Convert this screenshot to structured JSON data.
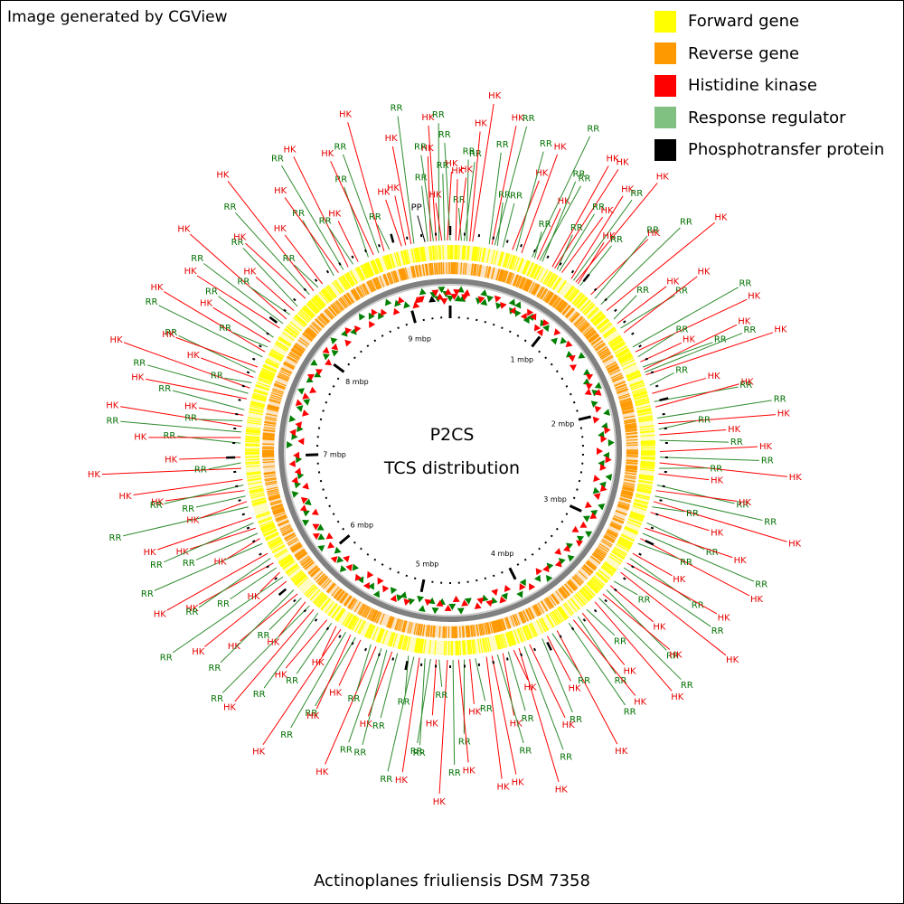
{
  "credit": "Image generated by CGView",
  "title": "P2CS",
  "subtitle": "TCS distribution",
  "organism": "Actinoplanes friuliensis DSM 7358",
  "colors": {
    "forward": "#ffff00",
    "reverse": "#ff9900",
    "hk": "#ff0000",
    "rr": "#80c080",
    "pp": "#000000",
    "hk_label": "#e60000",
    "rr_label": "#007000",
    "backbone": "#808080"
  },
  "legend": [
    {
      "label": "Forward gene",
      "color": "#ffff00"
    },
    {
      "label": "Reverse gene",
      "color": "#ff9900"
    },
    {
      "label": "Histidine kinase",
      "color": "#ff0000"
    },
    {
      "label": "Response regulator",
      "color": "#80c080"
    },
    {
      "label": "Phosphotransfer protein",
      "color": "#000000"
    }
  ],
  "genome": {
    "length_mbp": 9.4,
    "tick_labels": [
      "1 mbp",
      "2 mbp",
      "3 mbp",
      "4 mbp",
      "5 mbp",
      "6 mbp",
      "7 mbp",
      "8 mbp",
      "9 mbp"
    ]
  },
  "features": [
    {
      "type": "PP",
      "pos": 9.22
    },
    {
      "type": "RR",
      "pos": 9.24
    },
    {
      "type": "HK",
      "pos": 9.26
    },
    {
      "type": "RR",
      "pos": 9.28
    },
    {
      "type": "HK",
      "pos": 9.3
    },
    {
      "type": "RR",
      "pos": 9.32
    },
    {
      "type": "HK",
      "pos": 9.34
    },
    {
      "type": "RR",
      "pos": 9.36
    },
    {
      "type": "HK",
      "pos": 9.38
    },
    {
      "type": "RR",
      "pos": 9.4
    },
    {
      "type": "HK",
      "pos": 9.12
    },
    {
      "type": "RR",
      "pos": 9.14
    },
    {
      "type": "HK",
      "pos": 9.05
    },
    {
      "type": "HK",
      "pos": 9.08
    },
    {
      "type": "RR",
      "pos": 0.1
    },
    {
      "type": "RR",
      "pos": 0.12
    },
    {
      "type": "HK",
      "pos": 0.14
    },
    {
      "type": "HK",
      "pos": 0.16
    },
    {
      "type": "RR",
      "pos": 0.08
    },
    {
      "type": "HK",
      "pos": 0.04
    },
    {
      "type": "HK",
      "pos": 0.06
    },
    {
      "type": "RR",
      "pos": 0.28
    },
    {
      "type": "HK",
      "pos": 0.3
    },
    {
      "type": "RR",
      "pos": 0.32
    },
    {
      "type": "RR",
      "pos": 0.34
    },
    {
      "type": "RR",
      "pos": 0.38
    },
    {
      "type": "HK",
      "pos": 0.45
    },
    {
      "type": "RR",
      "pos": 0.48
    },
    {
      "type": "HK",
      "pos": 0.52
    },
    {
      "type": "RR",
      "pos": 0.6
    },
    {
      "type": "RR",
      "pos": 0.62
    },
    {
      "type": "HK",
      "pos": 0.64
    },
    {
      "type": "RR",
      "pos": 0.66
    },
    {
      "type": "RR",
      "pos": 0.68
    },
    {
      "type": "HK",
      "pos": 0.76
    },
    {
      "type": "HK",
      "pos": 0.78
    },
    {
      "type": "RR",
      "pos": 0.8
    },
    {
      "type": "RR",
      "pos": 0.82
    },
    {
      "type": "HK",
      "pos": 0.84
    },
    {
      "type": "HK",
      "pos": 0.92
    },
    {
      "type": "RR",
      "pos": 0.94
    },
    {
      "type": "HK",
      "pos": 0.96
    },
    {
      "type": "HK",
      "pos": 0.98
    },
    {
      "type": "RR",
      "pos": 1.0
    },
    {
      "type": "HK",
      "pos": 1.1
    },
    {
      "type": "RR",
      "pos": 1.14
    },
    {
      "type": "RR",
      "pos": 1.2
    },
    {
      "type": "HK",
      "pos": 1.26
    },
    {
      "type": "RR",
      "pos": 1.34
    },
    {
      "type": "HK",
      "pos": 1.38
    },
    {
      "type": "RR",
      "pos": 1.42
    },
    {
      "type": "HK",
      "pos": 1.46
    },
    {
      "type": "RR",
      "pos": 1.58
    },
    {
      "type": "HK",
      "pos": 1.62
    },
    {
      "type": "RR",
      "pos": 1.66
    },
    {
      "type": "HK",
      "pos": 1.7
    },
    {
      "type": "RR",
      "pos": 1.74
    },
    {
      "type": "HK",
      "pos": 1.76
    },
    {
      "type": "RR",
      "pos": 1.78
    },
    {
      "type": "HK",
      "pos": 1.8
    },
    {
      "type": "RR",
      "pos": 1.88
    },
    {
      "type": "HK",
      "pos": 1.94
    },
    {
      "type": "RR",
      "pos": 2.0
    },
    {
      "type": "HK",
      "pos": 2.04
    },
    {
      "type": "RR",
      "pos": 2.12
    },
    {
      "type": "HK",
      "pos": 2.16
    },
    {
      "type": "RR",
      "pos": 2.2
    },
    {
      "type": "HK",
      "pos": 2.24
    },
    {
      "type": "RR",
      "pos": 2.28
    },
    {
      "type": "HK",
      "pos": 2.36
    },
    {
      "type": "RR",
      "pos": 2.4
    },
    {
      "type": "HK",
      "pos": 2.44
    },
    {
      "type": "RR",
      "pos": 2.48
    },
    {
      "type": "HK",
      "pos": 2.52
    },
    {
      "type": "RR",
      "pos": 2.6
    },
    {
      "type": "HK",
      "pos": 2.64
    },
    {
      "type": "RR",
      "pos": 2.68
    },
    {
      "type": "HK",
      "pos": 2.72
    },
    {
      "type": "RR",
      "pos": 2.76
    },
    {
      "type": "HK",
      "pos": 2.8
    },
    {
      "type": "RR",
      "pos": 2.88
    },
    {
      "type": "HK",
      "pos": 2.92
    },
    {
      "type": "RR",
      "pos": 2.96
    },
    {
      "type": "HK",
      "pos": 3.0
    },
    {
      "type": "RR",
      "pos": 3.04
    },
    {
      "type": "HK",
      "pos": 3.12
    },
    {
      "type": "RR",
      "pos": 3.16
    },
    {
      "type": "HK",
      "pos": 3.2
    },
    {
      "type": "RR",
      "pos": 3.24
    },
    {
      "type": "HK",
      "pos": 3.28
    },
    {
      "type": "RR",
      "pos": 3.36
    },
    {
      "type": "HK",
      "pos": 3.4
    },
    {
      "type": "RR",
      "pos": 3.44
    },
    {
      "type": "HK",
      "pos": 3.48
    },
    {
      "type": "RR",
      "pos": 3.52
    },
    {
      "type": "HK",
      "pos": 3.56
    },
    {
      "type": "RR",
      "pos": 3.64
    },
    {
      "type": "HK",
      "pos": 3.68
    },
    {
      "type": "RR",
      "pos": 3.72
    },
    {
      "type": "HK",
      "pos": 3.76
    },
    {
      "type": "RR",
      "pos": 3.8
    },
    {
      "type": "HK",
      "pos": 3.9
    },
    {
      "type": "RR",
      "pos": 3.94
    },
    {
      "type": "HK",
      "pos": 3.98
    },
    {
      "type": "RR",
      "pos": 4.02
    },
    {
      "type": "HK",
      "pos": 4.12
    },
    {
      "type": "RR",
      "pos": 4.16
    },
    {
      "type": "HK",
      "pos": 4.2
    },
    {
      "type": "HK",
      "pos": 4.24
    },
    {
      "type": "RR",
      "pos": 4.28
    },
    {
      "type": "HK",
      "pos": 4.32
    },
    {
      "type": "RR",
      "pos": 4.36
    },
    {
      "type": "HK",
      "pos": 4.4
    },
    {
      "type": "HK",
      "pos": 4.44
    },
    {
      "type": "RR",
      "pos": 4.52
    },
    {
      "type": "HK",
      "pos": 4.56
    },
    {
      "type": "RR",
      "pos": 4.6
    },
    {
      "type": "HK",
      "pos": 4.64
    },
    {
      "type": "RR",
      "pos": 4.68
    },
    {
      "type": "HK",
      "pos": 4.72
    },
    {
      "type": "RR",
      "pos": 4.78
    },
    {
      "type": "HK",
      "pos": 4.8
    },
    {
      "type": "RR",
      "pos": 4.84
    },
    {
      "type": "RR",
      "pos": 4.88
    },
    {
      "type": "HK",
      "pos": 4.92
    },
    {
      "type": "RR",
      "pos": 4.96
    },
    {
      "type": "RR",
      "pos": 5.0
    },
    {
      "type": "RR",
      "pos": 5.08
    },
    {
      "type": "HK",
      "pos": 5.12
    },
    {
      "type": "RR",
      "pos": 5.16
    },
    {
      "type": "RR",
      "pos": 5.2
    },
    {
      "type": "HK",
      "pos": 5.24
    },
    {
      "type": "RR",
      "pos": 5.28
    },
    {
      "type": "HK",
      "pos": 5.36
    },
    {
      "type": "RR",
      "pos": 5.4
    },
    {
      "type": "HK",
      "pos": 5.44
    },
    {
      "type": "RR",
      "pos": 5.48
    },
    {
      "type": "HK",
      "pos": 5.52
    },
    {
      "type": "HK",
      "pos": 5.56
    },
    {
      "type": "RR",
      "pos": 5.6
    },
    {
      "type": "HK",
      "pos": 5.64
    },
    {
      "type": "RR",
      "pos": 5.72
    },
    {
      "type": "HK",
      "pos": 5.76
    },
    {
      "type": "RR",
      "pos": 5.8
    },
    {
      "type": "HK",
      "pos": 5.84
    },
    {
      "type": "RR",
      "pos": 5.88
    },
    {
      "type": "HK",
      "pos": 5.92
    },
    {
      "type": "RR",
      "pos": 5.96
    },
    {
      "type": "HK",
      "pos": 6.04
    },
    {
      "type": "RR",
      "pos": 6.08
    },
    {
      "type": "HK",
      "pos": 6.12
    },
    {
      "type": "RR",
      "pos": 6.16
    },
    {
      "type": "HK",
      "pos": 6.2
    },
    {
      "type": "RR",
      "pos": 6.24
    },
    {
      "type": "HK",
      "pos": 6.28
    },
    {
      "type": "RR",
      "pos": 6.36
    },
    {
      "type": "HK",
      "pos": 6.4
    },
    {
      "type": "RR",
      "pos": 6.44
    },
    {
      "type": "HK",
      "pos": 6.48
    },
    {
      "type": "RR",
      "pos": 6.52
    },
    {
      "type": "HK",
      "pos": 6.56
    },
    {
      "type": "RR",
      "pos": 6.64
    },
    {
      "type": "HK",
      "pos": 6.68
    },
    {
      "type": "RR",
      "pos": 6.72
    },
    {
      "type": "HK",
      "pos": 6.76
    },
    {
      "type": "RR",
      "pos": 6.8
    },
    {
      "type": "HK",
      "pos": 6.84
    },
    {
      "type": "HK",
      "pos": 6.92
    },
    {
      "type": "RR",
      "pos": 6.96
    },
    {
      "type": "HK",
      "pos": 7.0
    },
    {
      "type": "RR",
      "pos": 7.1
    },
    {
      "type": "HK",
      "pos": 7.14
    },
    {
      "type": "RR",
      "pos": 7.18
    },
    {
      "type": "HK",
      "pos": 7.22
    },
    {
      "type": "RR",
      "pos": 7.26
    },
    {
      "type": "HK",
      "pos": 7.3
    },
    {
      "type": "RR",
      "pos": 7.34
    },
    {
      "type": "HK",
      "pos": 7.42
    },
    {
      "type": "RR",
      "pos": 7.46
    },
    {
      "type": "HK",
      "pos": 7.5
    },
    {
      "type": "RR",
      "pos": 7.54
    },
    {
      "type": "HK",
      "pos": 7.58
    },
    {
      "type": "RR",
      "pos": 7.62
    },
    {
      "type": "HK",
      "pos": 7.66
    },
    {
      "type": "RR",
      "pos": 7.74
    },
    {
      "type": "HK",
      "pos": 7.78
    },
    {
      "type": "RR",
      "pos": 7.82
    },
    {
      "type": "HK",
      "pos": 7.86
    },
    {
      "type": "RR",
      "pos": 7.9
    },
    {
      "type": "HK",
      "pos": 7.98
    },
    {
      "type": "RR",
      "pos": 8.02
    },
    {
      "type": "HK",
      "pos": 8.06
    },
    {
      "type": "RR",
      "pos": 8.1
    },
    {
      "type": "HK",
      "pos": 8.14
    },
    {
      "type": "RR",
      "pos": 8.18
    },
    {
      "type": "HK",
      "pos": 8.26
    },
    {
      "type": "RR",
      "pos": 8.3
    },
    {
      "type": "HK",
      "pos": 8.34
    },
    {
      "type": "RR",
      "pos": 8.38
    },
    {
      "type": "HK",
      "pos": 8.42
    },
    {
      "type": "RR",
      "pos": 8.52
    },
    {
      "type": "HK",
      "pos": 8.56
    },
    {
      "type": "RR",
      "pos": 8.6
    },
    {
      "type": "HK",
      "pos": 8.64
    },
    {
      "type": "RR",
      "pos": 8.68
    },
    {
      "type": "HK",
      "pos": 8.72
    },
    {
      "type": "RR",
      "pos": 8.8
    },
    {
      "type": "HK",
      "pos": 8.84
    },
    {
      "type": "RR",
      "pos": 8.88
    },
    {
      "type": "HK",
      "pos": 8.92
    },
    {
      "type": "RR",
      "pos": 8.96
    }
  ]
}
